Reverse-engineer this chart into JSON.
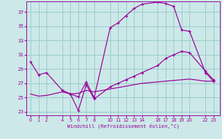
{
  "xlabel": "Windchill (Refroidissement éolien,°C)",
  "bg_color": "#cce8e8",
  "grid_color": "#99cccc",
  "line_color": "#990099",
  "line1_x": [
    0,
    1,
    2,
    4,
    5,
    6,
    7,
    8,
    10,
    11,
    12,
    13,
    14,
    16,
    17,
    18,
    19,
    20,
    22,
    23
  ],
  "line1_y": [
    30.0,
    28.2,
    28.5,
    26.0,
    25.5,
    25.1,
    27.2,
    25.0,
    34.8,
    35.5,
    36.5,
    37.5,
    38.1,
    38.4,
    38.2,
    37.8,
    34.5,
    34.3,
    28.5,
    27.3
  ],
  "line2_x": [
    0,
    1,
    2,
    4,
    5,
    6,
    7,
    8,
    10,
    11,
    12,
    13,
    14,
    16,
    17,
    18,
    19,
    20,
    22,
    23
  ],
  "line2_y": [
    25.5,
    25.2,
    25.3,
    25.8,
    25.5,
    25.6,
    26.0,
    25.8,
    26.2,
    26.4,
    26.6,
    26.8,
    27.0,
    27.2,
    27.3,
    27.4,
    27.5,
    27.6,
    27.3,
    27.3
  ],
  "line3_x": [
    4,
    5,
    6,
    7,
    8,
    10,
    11,
    12,
    13,
    14,
    16,
    17,
    18,
    19,
    20,
    22,
    23
  ],
  "line3_y": [
    26.0,
    25.5,
    23.2,
    26.8,
    24.8,
    26.5,
    27.0,
    27.5,
    28.0,
    28.5,
    29.5,
    30.5,
    31.0,
    31.5,
    31.3,
    28.7,
    27.5
  ],
  "xticks": [
    0,
    1,
    2,
    4,
    5,
    6,
    7,
    8,
    10,
    11,
    12,
    13,
    14,
    16,
    17,
    18,
    19,
    20,
    22,
    23
  ],
  "yticks": [
    23,
    25,
    27,
    29,
    31,
    33,
    35,
    37
  ],
  "xlim": [
    -0.5,
    23.8
  ],
  "ylim": [
    22.5,
    38.5
  ]
}
